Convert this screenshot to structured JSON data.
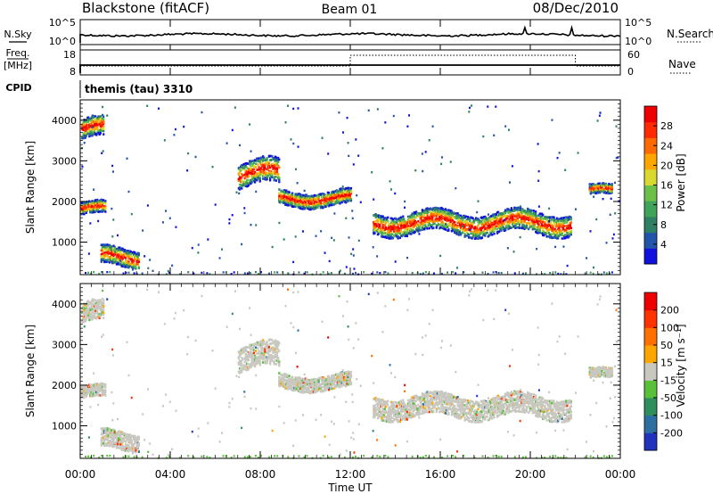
{
  "header": {
    "station": "Blackstone (fitACF)",
    "beam": "Beam 01",
    "date": "08/Dec/2010"
  },
  "left_labels": {
    "nsky": "N.Sky",
    "freq": "Freq.",
    "freq_unit": "[MHz]",
    "cpid": "CPID"
  },
  "right_labels": {
    "nsearch": "N.Search",
    "nave": "Nave"
  },
  "cpid_text": "themis (tau) 3310",
  "xlabel": "Time UT",
  "colors": {
    "power": [
      "#1111dd",
      "#2255aa",
      "#2e7f63",
      "#3fa35a",
      "#6cc04a",
      "#d8d830",
      "#ffa500",
      "#ff6a00",
      "#ff2a00",
      "#ee0000"
    ],
    "velocity": [
      "#2233bb",
      "#2d6fa0",
      "#2f8e5c",
      "#59c03a",
      "#c8c8c0",
      "#ffa500",
      "#ff7000",
      "#ff3300",
      "#ee0000"
    ]
  },
  "chart_data": [
    {
      "type": "line",
      "name": "noise",
      "yticks": [
        "10^5",
        "10^0"
      ],
      "right_yticks": [
        "10^5",
        "10^0"
      ]
    },
    {
      "type": "line",
      "name": "freq-nave",
      "yticks": [
        "18",
        "8"
      ],
      "right_yticks": [
        "60",
        "0"
      ],
      "freq_level": "approx 10 MHz",
      "nave_step": {
        "high_from": "12:00",
        "high_to": "22:00"
      }
    },
    {
      "type": "heatmap",
      "name": "power",
      "ylabel": "Slant Range [km]",
      "ylim": [
        200,
        4500
      ],
      "yticks": [
        "4000",
        "3000",
        "2000",
        "1000"
      ],
      "xticks": [
        "00:00",
        "04:00",
        "08:00",
        "12:00",
        "16:00",
        "20:00",
        "00:00"
      ],
      "colorbar_label": "Power [dB]",
      "colorbar_ticks": [
        "28",
        "24",
        "20",
        "16",
        "12",
        "8",
        "4"
      ],
      "colorbar_range": [
        0,
        30
      ],
      "bands": [
        {
          "t0": 0.05,
          "t1": 1.0,
          "r": 3800,
          "w": 250
        },
        {
          "t0": 0.0,
          "t1": 1.1,
          "r": 1850,
          "w": 150
        },
        {
          "t0": 0.9,
          "t1": 2.6,
          "r": 650,
          "w": 220
        },
        {
          "t0": 7.0,
          "t1": 8.8,
          "r": 2700,
          "w": 300
        },
        {
          "t0": 8.8,
          "t1": 12.0,
          "r": 2100,
          "w": 180
        },
        {
          "t0": 13.0,
          "t1": 21.8,
          "r": 1500,
          "w": 260
        },
        {
          "t0": 22.6,
          "t1": 23.6,
          "r": 2300,
          "w": 120
        }
      ]
    },
    {
      "type": "heatmap",
      "name": "velocity",
      "ylabel": "Slant Range [km]",
      "ylim": [
        200,
        4500
      ],
      "yticks": [
        "4000",
        "3000",
        "2000",
        "1000"
      ],
      "xticks": [
        "00:00",
        "04:00",
        "08:00",
        "12:00",
        "16:00",
        "20:00",
        "00:00"
      ],
      "colorbar_label": "Velocity [m s⁻¹]",
      "colorbar_ticks": [
        "200",
        "100",
        "50",
        "15",
        "-15",
        "-50",
        "-100",
        "-200"
      ],
      "colorbar_range": [
        -250,
        250
      ]
    }
  ]
}
